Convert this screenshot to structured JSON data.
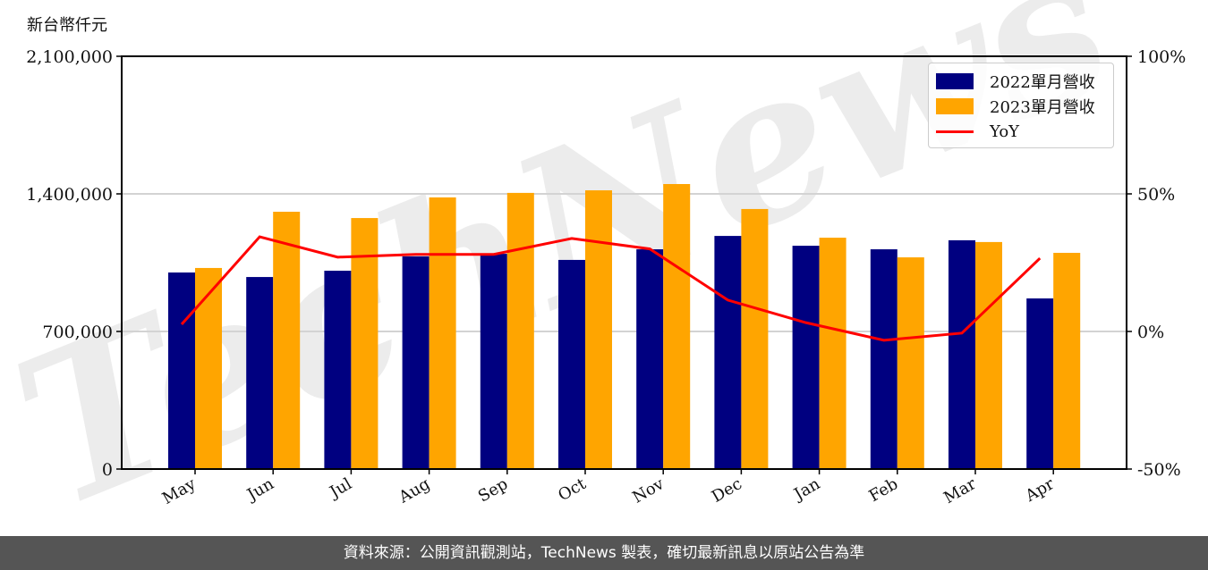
{
  "chart_data": {
    "type": "bar",
    "title": "",
    "ylabel": "新台幣仟元",
    "y2label": "",
    "xlabel": "",
    "categories": [
      "May",
      "Jun",
      "Jul",
      "Aug",
      "Sep",
      "Oct",
      "Nov",
      "Dec",
      "Jan",
      "Feb",
      "Mar",
      "Apr"
    ],
    "series": [
      {
        "name": "2022單月營收",
        "type": "bar",
        "axis": "left",
        "color": "#000080",
        "values": [
          1000000,
          977000,
          1009000,
          1082000,
          1095000,
          1064000,
          1118000,
          1186000,
          1136000,
          1118000,
          1164000,
          868000
        ]
      },
      {
        "name": "2023單月營收",
        "type": "bar",
        "axis": "left",
        "color": "#FFA500",
        "values": [
          1023000,
          1309000,
          1277000,
          1382000,
          1405000,
          1418000,
          1450000,
          1323000,
          1177000,
          1077000,
          1155000,
          1100000
        ]
      },
      {
        "name": "YoY",
        "type": "line",
        "axis": "right",
        "color": "#FF0000",
        "unit": "%",
        "values": [
          2.6,
          34.4,
          27.0,
          28.0,
          28.0,
          33.8,
          30.0,
          11.4,
          3.2,
          -3.2,
          -0.6,
          26.6
        ]
      }
    ],
    "ylim": [
      0,
      2100000
    ],
    "y2lim": [
      -50,
      100
    ],
    "yticks": [
      0,
      700000,
      1400000,
      2100000
    ],
    "ytick_labels": [
      "0",
      "700,000",
      "1,400,000",
      "2,100,000"
    ],
    "y2ticks": [
      -50,
      0,
      50,
      100
    ],
    "y2tick_labels": [
      "-50%",
      "0%",
      "50%",
      "100%"
    ],
    "grid": "horizontal",
    "legend_position": "upper right",
    "watermark": "TechNews"
  },
  "header": {
    "unit_label": "新台幣仟元"
  },
  "legend": {
    "items": [
      {
        "label": "2022單月營收",
        "color": "#000080"
      },
      {
        "label": "2023單月營收",
        "color": "#FFA500"
      },
      {
        "label": "YoY",
        "color": "#FF0000"
      }
    ]
  },
  "footer": {
    "source_text": "資料來源：公開資訊觀測站，TechNews 製表，確切最新訊息以原站公告為準"
  }
}
